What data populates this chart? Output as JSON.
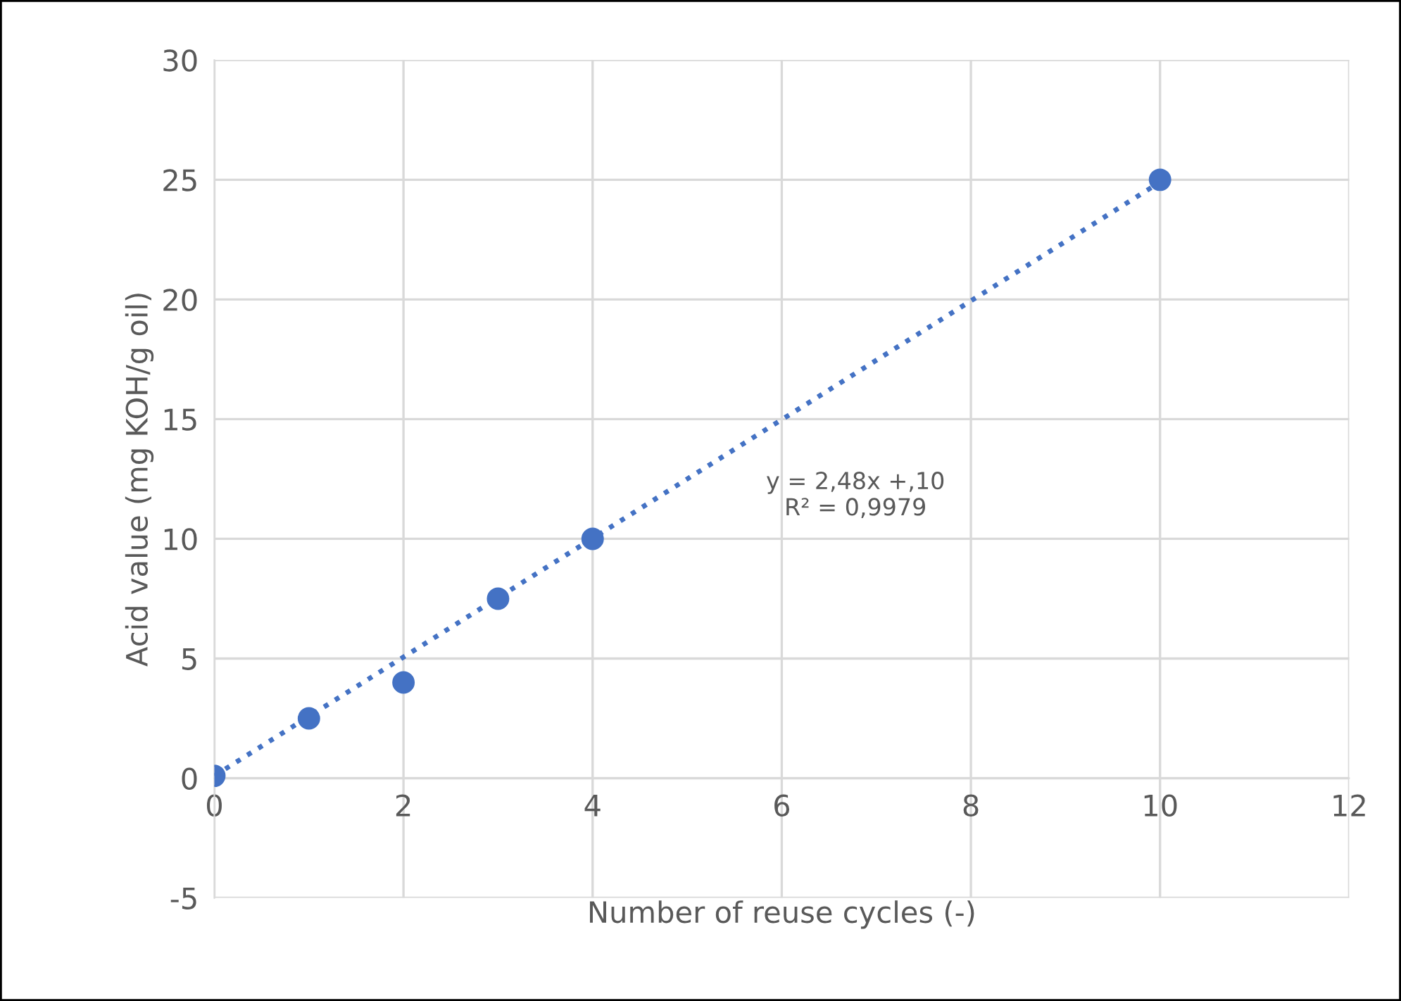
{
  "chart_data": {
    "type": "scatter",
    "xlabel": "Number of reuse cycles (-)",
    "ylabel": "Acid value (mg KOH/g oil)",
    "series": [
      {
        "color": "#4472c4",
        "x": [
          0,
          1,
          2,
          3,
          4,
          10
        ],
        "values": [
          0.1,
          2.5,
          4,
          7.5,
          10,
          25
        ],
        "marker": "circle"
      },
      {
        "type": "line",
        "color": "#4472c4",
        "x": [
          0,
          10
        ],
        "values": [
          0.1,
          24.9
        ],
        "line_style": "dotted",
        "marker": "none"
      }
    ],
    "annotations": [
      "y = 2,48x +,10\nR² = 0,9979"
    ],
    "xlim": [
      0,
      12
    ],
    "xticks": [
      0,
      2,
      4,
      6,
      8,
      10,
      12
    ],
    "ylim": [
      -5,
      30
    ],
    "yticks": [
      -5,
      0,
      5,
      10,
      15,
      20,
      25,
      30
    ],
    "grid": true
  }
}
